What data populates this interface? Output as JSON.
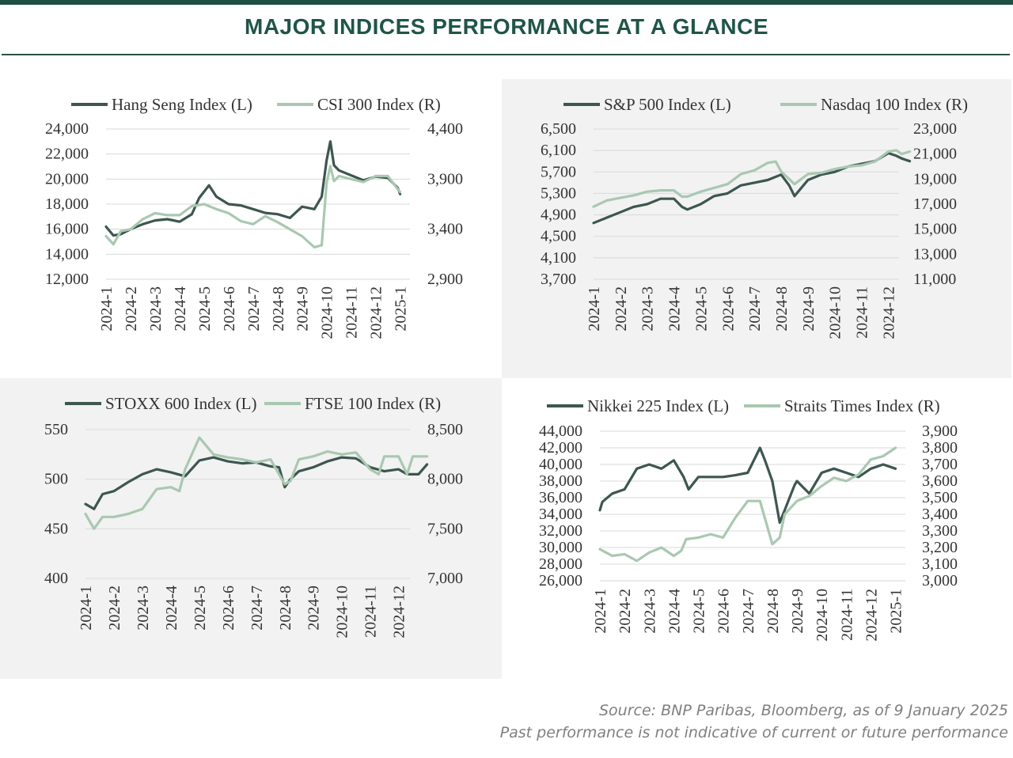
{
  "header": {
    "title": "MAJOR INDICES PERFORMANCE AT A GLANCE"
  },
  "footer": {
    "source": "Source: BNP Paribas, Bloomberg, as of 9 January 2025",
    "disclaimer": "Past performance is not indicative of current or future performance"
  },
  "colors": {
    "left_series": "#3d5650",
    "right_series": "#a9c8b1",
    "panel_shade": "#f2f2f2",
    "brand": "#1f5547"
  },
  "chart_data": [
    {
      "type": "line",
      "x_ticks": [
        "2024-1",
        "2024-2",
        "2024-3",
        "2024-4",
        "2024-5",
        "2024-6",
        "2024-7",
        "2024-8",
        "2024-9",
        "2024-10",
        "2024-11",
        "2024-12",
        "2025-1"
      ],
      "y_left": {
        "ticks": [
          "24,000",
          "22,000",
          "20,000",
          "18,000",
          "16,000",
          "14,000",
          "12,000"
        ],
        "range": [
          12000,
          24000
        ]
      },
      "y_right": {
        "ticks": [
          "4,400",
          "3,900",
          "3,400",
          "2,900"
        ],
        "range": [
          2900,
          4400
        ]
      },
      "legend_position": "top",
      "series": [
        {
          "name": "Hang Seng Index (L)",
          "axis": "left",
          "x": [
            0,
            0.3,
            0.6,
            1,
            1.5,
            2,
            2.5,
            3,
            3.5,
            3.8,
            4.2,
            4.5,
            5,
            5.5,
            6,
            6.5,
            7,
            7.5,
            8,
            8.5,
            8.8,
            9,
            9.15,
            9.3,
            9.5,
            10,
            10.5,
            11,
            11.5,
            11.9,
            12
          ],
          "y": [
            16200,
            15500,
            15600,
            16000,
            16400,
            16700,
            16800,
            16600,
            17200,
            18500,
            19500,
            18600,
            18000,
            17900,
            17600,
            17300,
            17200,
            16900,
            17800,
            17600,
            18600,
            21500,
            23000,
            21100,
            20700,
            20300,
            19900,
            20200,
            20100,
            19300,
            18800
          ]
        },
        {
          "name": "CSI 300 Index (R)",
          "axis": "right",
          "x": [
            0,
            0.3,
            0.6,
            1,
            1.5,
            2,
            2.5,
            3,
            3.5,
            4,
            4.5,
            5,
            5.5,
            6,
            6.5,
            7,
            7.5,
            8,
            8.5,
            8.8,
            9,
            9.15,
            9.3,
            9.5,
            10,
            10.5,
            11,
            11.5,
            11.9,
            12
          ],
          "y": [
            3330,
            3250,
            3380,
            3400,
            3500,
            3560,
            3540,
            3540,
            3630,
            3650,
            3600,
            3560,
            3480,
            3450,
            3530,
            3470,
            3400,
            3330,
            3220,
            3240,
            3860,
            4030,
            3880,
            3930,
            3900,
            3870,
            3930,
            3930,
            3800,
            3770
          ]
        }
      ]
    },
    {
      "type": "line",
      "x_ticks": [
        "2024-1",
        "2024-2",
        "2024-3",
        "2024-4",
        "2024-5",
        "2024-6",
        "2024-7",
        "2024-8",
        "2024-9",
        "2024-10",
        "2024-11",
        "2024-12"
      ],
      "y_left": {
        "ticks": [
          "6,500",
          "6,100",
          "5,700",
          "5,300",
          "4,900",
          "4,500",
          "4,100",
          "3,700"
        ],
        "range": [
          3700,
          6500
        ]
      },
      "y_right": {
        "ticks": [
          "23,000",
          "21,000",
          "19,000",
          "17,000",
          "15,000",
          "13,000",
          "11,000"
        ],
        "range": [
          11000,
          23000
        ]
      },
      "legend_position": "top",
      "series": [
        {
          "name": "S&P 500 Index (L)",
          "axis": "left",
          "x": [
            0,
            0.5,
            1,
            1.5,
            2,
            2.5,
            3,
            3.3,
            3.5,
            4,
            4.5,
            5,
            5.5,
            6,
            6.5,
            7,
            7.3,
            7.5,
            8,
            8.5,
            9,
            9.5,
            10,
            10.5,
            11,
            11.3,
            11.5,
            11.8
          ],
          "y": [
            4750,
            4850,
            4950,
            5050,
            5100,
            5200,
            5200,
            5050,
            5000,
            5100,
            5250,
            5300,
            5450,
            5500,
            5550,
            5650,
            5450,
            5250,
            5550,
            5650,
            5700,
            5800,
            5850,
            5900,
            6050,
            6000,
            5950,
            5900
          ]
        },
        {
          "name": "Nasdaq 100 Index (R)",
          "axis": "right",
          "x": [
            0,
            0.5,
            1,
            1.5,
            2,
            2.5,
            3,
            3.3,
            3.5,
            4,
            4.5,
            5,
            5.5,
            6,
            6.5,
            6.8,
            7,
            7.3,
            7.5,
            8,
            8.5,
            9,
            9.5,
            10,
            10.5,
            11,
            11.3,
            11.5,
            11.8
          ],
          "y": [
            16800,
            17300,
            17500,
            17700,
            18000,
            18100,
            18100,
            17600,
            17600,
            18000,
            18300,
            18600,
            19400,
            19700,
            20300,
            20400,
            19600,
            19000,
            18600,
            19400,
            19500,
            19800,
            20000,
            20100,
            20400,
            21200,
            21300,
            21000,
            21200
          ]
        }
      ]
    },
    {
      "type": "line",
      "x_ticks": [
        "2024-1",
        "2024-2",
        "2024-3",
        "2024-4",
        "2024-5",
        "2024-6",
        "2024-7",
        "2024-8",
        "2024-9",
        "2024-10",
        "2024-11",
        "2024-12"
      ],
      "y_left": {
        "ticks": [
          "550",
          "500",
          "450",
          "400"
        ],
        "range": [
          400,
          550
        ]
      },
      "y_right": {
        "ticks": [
          "8,500",
          "8,000",
          "7,500",
          "7,000"
        ],
        "range": [
          7000,
          8500
        ]
      },
      "legend_position": "top",
      "series": [
        {
          "name": "STOXX 600 Index (L)",
          "axis": "left",
          "x": [
            0,
            0.3,
            0.6,
            1,
            1.5,
            2,
            2.5,
            3,
            3.5,
            4,
            4.5,
            5,
            5.5,
            6,
            6.5,
            6.8,
            7,
            7.2,
            7.5,
            8,
            8.5,
            9,
            9.5,
            10,
            10.5,
            11,
            11.3,
            11.7,
            12
          ],
          "y": [
            475,
            470,
            485,
            488,
            497,
            505,
            510,
            507,
            503,
            519,
            522,
            518,
            516,
            517,
            513,
            512,
            492,
            500,
            508,
            512,
            518,
            522,
            521,
            512,
            508,
            510,
            505,
            505,
            515
          ]
        },
        {
          "name": "FTSE 100 Index (R)",
          "axis": "right",
          "x": [
            0,
            0.3,
            0.6,
            1,
            1.5,
            2,
            2.5,
            3,
            3.3,
            3.5,
            4,
            4.5,
            5,
            5.5,
            6,
            6.5,
            7,
            7.2,
            7.5,
            8,
            8.5,
            9,
            9.5,
            10,
            10.3,
            10.5,
            11,
            11.3,
            11.5,
            12
          ],
          "y": [
            7650,
            7500,
            7620,
            7620,
            7650,
            7700,
            7900,
            7920,
            7880,
            8100,
            8420,
            8250,
            8220,
            8200,
            8170,
            8200,
            7950,
            7980,
            8200,
            8230,
            8280,
            8250,
            8270,
            8100,
            8050,
            8230,
            8230,
            8050,
            8230,
            8230
          ]
        }
      ]
    },
    {
      "type": "line",
      "x_ticks": [
        "2024-1",
        "2024-2",
        "2024-3",
        "2024-4",
        "2024-5",
        "2024-6",
        "2024-7",
        "2024-8",
        "2024-9",
        "2024-10",
        "2024-11",
        "2024-12",
        "2025-1"
      ],
      "y_left": {
        "ticks": [
          "44,000",
          "42,000",
          "40,000",
          "38,000",
          "36,000",
          "34,000",
          "32,000",
          "30,000",
          "28,000",
          "26,000"
        ],
        "range": [
          26000,
          44000
        ]
      },
      "y_right": {
        "ticks": [
          "3,900",
          "3,800",
          "3,700",
          "3,600",
          "3,500",
          "3,400",
          "3,300",
          "3,200",
          "3,100",
          "3,000"
        ],
        "range": [
          3000,
          3900
        ]
      },
      "legend_position": "top",
      "series": [
        {
          "name": "Nikkei 225 Index (L)",
          "axis": "left",
          "x": [
            0,
            0.1,
            0.5,
            1,
            1.5,
            2,
            2.5,
            3,
            3.4,
            3.6,
            4,
            4.5,
            5,
            5.5,
            6,
            6.5,
            6.7,
            7,
            7.3,
            7.5,
            7.9,
            8,
            8.5,
            9,
            9.5,
            10,
            10.5,
            11,
            11.5,
            12
          ],
          "y": [
            34500,
            35500,
            36500,
            37000,
            39500,
            40000,
            39500,
            40500,
            38500,
            37000,
            38500,
            38500,
            38500,
            38700,
            39000,
            42000,
            40500,
            38000,
            33000,
            34500,
            37500,
            38000,
            36500,
            39000,
            39500,
            39000,
            38500,
            39500,
            40000,
            39500
          ]
        },
        {
          "name": "Straits Times Index (R)",
          "axis": "right",
          "x": [
            0,
            0.5,
            1,
            1.5,
            2,
            2.5,
            3,
            3.3,
            3.5,
            4,
            4.5,
            5,
            5.5,
            6,
            6.5,
            7,
            7.3,
            7.5,
            8,
            8.5,
            9,
            9.5,
            10,
            10.5,
            11,
            11.5,
            12
          ],
          "y": [
            3190,
            3150,
            3160,
            3120,
            3170,
            3200,
            3150,
            3180,
            3250,
            3260,
            3280,
            3260,
            3380,
            3480,
            3480,
            3220,
            3260,
            3400,
            3480,
            3510,
            3570,
            3620,
            3600,
            3640,
            3730,
            3750,
            3800
          ]
        }
      ]
    }
  ]
}
